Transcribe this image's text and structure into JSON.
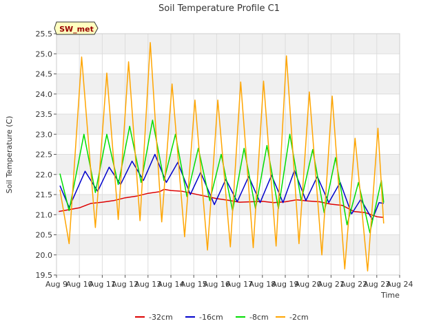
{
  "chart_data": {
    "type": "line",
    "title": "Soil Temperature Profile C1",
    "xlabel": "Time",
    "ylabel": "Soil Temperature (C)",
    "station_label": "SW_met",
    "xlim": [
      9,
      24
    ],
    "ylim": [
      19.5,
      25.5
    ],
    "x_ticks": [
      {
        "value": 9,
        "label": "Aug 9"
      },
      {
        "value": 10,
        "label": "Aug 10"
      },
      {
        "value": 11,
        "label": "Aug 11"
      },
      {
        "value": 12,
        "label": "Aug 12"
      },
      {
        "value": 13,
        "label": "Aug 13"
      },
      {
        "value": 14,
        "label": "Aug 14"
      },
      {
        "value": 15,
        "label": "Aug 15"
      },
      {
        "value": 16,
        "label": "Aug 16"
      },
      {
        "value": 17,
        "label": "Aug 17"
      },
      {
        "value": 18,
        "label": "Aug 18"
      },
      {
        "value": 19,
        "label": "Aug 19"
      },
      {
        "value": 20,
        "label": "Aug 20"
      },
      {
        "value": 21,
        "label": "Aug 21"
      },
      {
        "value": 22,
        "label": "Aug 22"
      },
      {
        "value": 23,
        "label": "Aug 23"
      },
      {
        "value": 24,
        "label": "Aug 24"
      }
    ],
    "y_ticks": [
      {
        "value": 19.5,
        "label": "19.5"
      },
      {
        "value": 20.0,
        "label": "20.0"
      },
      {
        "value": 20.5,
        "label": "20.5"
      },
      {
        "value": 21.0,
        "label": "21.0"
      },
      {
        "value": 21.5,
        "label": "21.5"
      },
      {
        "value": 22.0,
        "label": "22.0"
      },
      {
        "value": 22.5,
        "label": "22.5"
      },
      {
        "value": 23.0,
        "label": "23.0"
      },
      {
        "value": 23.5,
        "label": "23.5"
      },
      {
        "value": 24.0,
        "label": "24.0"
      },
      {
        "value": 24.5,
        "label": "24.5"
      },
      {
        "value": 25.0,
        "label": "25.0"
      },
      {
        "value": 25.5,
        "label": "25.5"
      }
    ],
    "grid": true,
    "legend_position": "bottom",
    "series": [
      {
        "name": "-32cm",
        "color": "#dd0000",
        "points": [
          [
            9.1,
            21.08
          ],
          [
            9.5,
            21.12
          ],
          [
            10,
            21.17
          ],
          [
            10.5,
            21.28
          ],
          [
            11,
            21.31
          ],
          [
            11.5,
            21.35
          ],
          [
            12,
            21.42
          ],
          [
            12.5,
            21.46
          ],
          [
            13,
            21.53
          ],
          [
            13.5,
            21.57
          ],
          [
            13.7,
            21.63
          ],
          [
            14,
            21.6
          ],
          [
            14.5,
            21.58
          ],
          [
            15,
            21.52
          ],
          [
            15.5,
            21.46
          ],
          [
            16,
            21.4
          ],
          [
            16.5,
            21.36
          ],
          [
            17,
            21.31
          ],
          [
            17.5,
            21.32
          ],
          [
            18,
            21.33
          ],
          [
            18.5,
            21.3
          ],
          [
            19,
            21.32
          ],
          [
            19.5,
            21.37
          ],
          [
            20,
            21.34
          ],
          [
            20.5,
            21.32
          ],
          [
            21,
            21.26
          ],
          [
            21.5,
            21.23
          ],
          [
            22,
            21.08
          ],
          [
            22.5,
            21.05
          ],
          [
            23,
            20.95
          ],
          [
            23.3,
            20.93
          ]
        ]
      },
      {
        "name": "-16cm",
        "color": "#0000cc",
        "points": [
          [
            9.15,
            21.72
          ],
          [
            9.55,
            21.18
          ],
          [
            10.25,
            22.08
          ],
          [
            10.8,
            21.58
          ],
          [
            11.3,
            22.18
          ],
          [
            11.8,
            21.75
          ],
          [
            12.3,
            22.33
          ],
          [
            12.8,
            21.85
          ],
          [
            13.3,
            22.5
          ],
          [
            13.8,
            21.8
          ],
          [
            14.3,
            22.3
          ],
          [
            14.85,
            21.5
          ],
          [
            15.3,
            22.05
          ],
          [
            15.9,
            21.25
          ],
          [
            16.4,
            21.88
          ],
          [
            16.9,
            21.32
          ],
          [
            17.4,
            21.95
          ],
          [
            17.9,
            21.3
          ],
          [
            18.4,
            21.98
          ],
          [
            18.9,
            21.3
          ],
          [
            19.4,
            22.1
          ],
          [
            19.9,
            21.35
          ],
          [
            20.4,
            21.95
          ],
          [
            20.9,
            21.3
          ],
          [
            21.4,
            21.8
          ],
          [
            21.9,
            21.02
          ],
          [
            22.3,
            21.38
          ],
          [
            22.8,
            20.88
          ],
          [
            23.1,
            21.3
          ],
          [
            23.3,
            21.28
          ]
        ]
      },
      {
        "name": "-8cm",
        "color": "#00dd00",
        "points": [
          [
            9.15,
            22.02
          ],
          [
            9.55,
            21.1
          ],
          [
            10.2,
            23.0
          ],
          [
            10.7,
            21.55
          ],
          [
            11.2,
            23.0
          ],
          [
            11.7,
            21.75
          ],
          [
            12.2,
            23.2
          ],
          [
            12.7,
            21.8
          ],
          [
            13.2,
            23.35
          ],
          [
            13.7,
            21.85
          ],
          [
            14.2,
            23.0
          ],
          [
            14.7,
            21.45
          ],
          [
            15.2,
            22.65
          ],
          [
            15.7,
            21.35
          ],
          [
            16.2,
            22.5
          ],
          [
            16.7,
            21.1
          ],
          [
            17.2,
            22.65
          ],
          [
            17.7,
            21.15
          ],
          [
            18.2,
            22.72
          ],
          [
            18.7,
            21.15
          ],
          [
            19.2,
            23.0
          ],
          [
            19.7,
            21.35
          ],
          [
            20.2,
            22.62
          ],
          [
            20.7,
            21.05
          ],
          [
            21.2,
            22.42
          ],
          [
            21.7,
            20.75
          ],
          [
            22.2,
            21.8
          ],
          [
            22.7,
            20.55
          ],
          [
            23.2,
            21.85
          ],
          [
            23.3,
            21.3
          ]
        ]
      },
      {
        "name": "-2cm",
        "color": "#ffa500",
        "points": [
          [
            9.15,
            21.62
          ],
          [
            9.55,
            20.28
          ],
          [
            10.1,
            24.92
          ],
          [
            10.7,
            20.68
          ],
          [
            11.2,
            24.52
          ],
          [
            11.7,
            20.88
          ],
          [
            12.15,
            24.8
          ],
          [
            12.65,
            20.85
          ],
          [
            13.1,
            25.28
          ],
          [
            13.6,
            20.82
          ],
          [
            14.05,
            24.25
          ],
          [
            14.6,
            20.45
          ],
          [
            15.05,
            23.85
          ],
          [
            15.6,
            20.12
          ],
          [
            16.05,
            23.85
          ],
          [
            16.6,
            20.2
          ],
          [
            17.05,
            24.3
          ],
          [
            17.6,
            20.18
          ],
          [
            18.05,
            24.32
          ],
          [
            18.6,
            20.22
          ],
          [
            19.05,
            24.95
          ],
          [
            19.6,
            20.28
          ],
          [
            20.05,
            24.05
          ],
          [
            20.6,
            20.0
          ],
          [
            21.05,
            23.95
          ],
          [
            21.6,
            19.65
          ],
          [
            22.05,
            22.9
          ],
          [
            22.6,
            19.6
          ],
          [
            23.05,
            23.15
          ],
          [
            23.3,
            20.78
          ]
        ]
      }
    ]
  }
}
